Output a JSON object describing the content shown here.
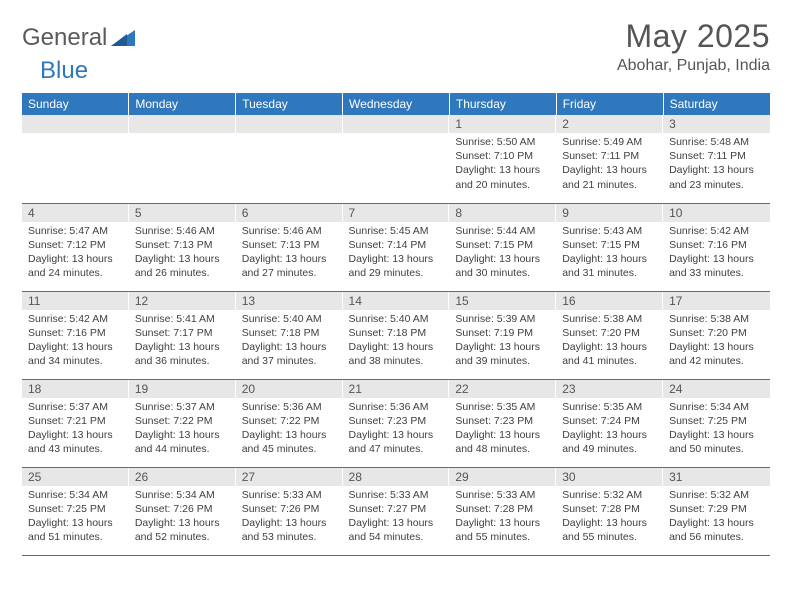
{
  "logo": {
    "text1": "General",
    "text2": "Blue"
  },
  "title": "May 2025",
  "location": "Abohar, Punjab, India",
  "colors": {
    "header_bg": "#2f78bd",
    "header_text": "#ffffff",
    "daynum_bg": "#e7e7e7",
    "daynum_text": "#555555",
    "body_text": "#404040",
    "rule": "#2f78bd",
    "page_bg": "#ffffff"
  },
  "typography": {
    "title_fontsize": 32,
    "location_fontsize": 16,
    "dayheader_fontsize": 12,
    "daynum_fontsize": 12,
    "cell_fontsize": 10.5
  },
  "day_headers": [
    "Sunday",
    "Monday",
    "Tuesday",
    "Wednesday",
    "Thursday",
    "Friday",
    "Saturday"
  ],
  "weeks": [
    [
      null,
      null,
      null,
      null,
      {
        "n": "1",
        "sunrise": "5:50 AM",
        "sunset": "7:10 PM",
        "daylight": "13 hours and 20 minutes."
      },
      {
        "n": "2",
        "sunrise": "5:49 AM",
        "sunset": "7:11 PM",
        "daylight": "13 hours and 21 minutes."
      },
      {
        "n": "3",
        "sunrise": "5:48 AM",
        "sunset": "7:11 PM",
        "daylight": "13 hours and 23 minutes."
      }
    ],
    [
      {
        "n": "4",
        "sunrise": "5:47 AM",
        "sunset": "7:12 PM",
        "daylight": "13 hours and 24 minutes."
      },
      {
        "n": "5",
        "sunrise": "5:46 AM",
        "sunset": "7:13 PM",
        "daylight": "13 hours and 26 minutes."
      },
      {
        "n": "6",
        "sunrise": "5:46 AM",
        "sunset": "7:13 PM",
        "daylight": "13 hours and 27 minutes."
      },
      {
        "n": "7",
        "sunrise": "5:45 AM",
        "sunset": "7:14 PM",
        "daylight": "13 hours and 29 minutes."
      },
      {
        "n": "8",
        "sunrise": "5:44 AM",
        "sunset": "7:15 PM",
        "daylight": "13 hours and 30 minutes."
      },
      {
        "n": "9",
        "sunrise": "5:43 AM",
        "sunset": "7:15 PM",
        "daylight": "13 hours and 31 minutes."
      },
      {
        "n": "10",
        "sunrise": "5:42 AM",
        "sunset": "7:16 PM",
        "daylight": "13 hours and 33 minutes."
      }
    ],
    [
      {
        "n": "11",
        "sunrise": "5:42 AM",
        "sunset": "7:16 PM",
        "daylight": "13 hours and 34 minutes."
      },
      {
        "n": "12",
        "sunrise": "5:41 AM",
        "sunset": "7:17 PM",
        "daylight": "13 hours and 36 minutes."
      },
      {
        "n": "13",
        "sunrise": "5:40 AM",
        "sunset": "7:18 PM",
        "daylight": "13 hours and 37 minutes."
      },
      {
        "n": "14",
        "sunrise": "5:40 AM",
        "sunset": "7:18 PM",
        "daylight": "13 hours and 38 minutes."
      },
      {
        "n": "15",
        "sunrise": "5:39 AM",
        "sunset": "7:19 PM",
        "daylight": "13 hours and 39 minutes."
      },
      {
        "n": "16",
        "sunrise": "5:38 AM",
        "sunset": "7:20 PM",
        "daylight": "13 hours and 41 minutes."
      },
      {
        "n": "17",
        "sunrise": "5:38 AM",
        "sunset": "7:20 PM",
        "daylight": "13 hours and 42 minutes."
      }
    ],
    [
      {
        "n": "18",
        "sunrise": "5:37 AM",
        "sunset": "7:21 PM",
        "daylight": "13 hours and 43 minutes."
      },
      {
        "n": "19",
        "sunrise": "5:37 AM",
        "sunset": "7:22 PM",
        "daylight": "13 hours and 44 minutes."
      },
      {
        "n": "20",
        "sunrise": "5:36 AM",
        "sunset": "7:22 PM",
        "daylight": "13 hours and 45 minutes."
      },
      {
        "n": "21",
        "sunrise": "5:36 AM",
        "sunset": "7:23 PM",
        "daylight": "13 hours and 47 minutes."
      },
      {
        "n": "22",
        "sunrise": "5:35 AM",
        "sunset": "7:23 PM",
        "daylight": "13 hours and 48 minutes."
      },
      {
        "n": "23",
        "sunrise": "5:35 AM",
        "sunset": "7:24 PM",
        "daylight": "13 hours and 49 minutes."
      },
      {
        "n": "24",
        "sunrise": "5:34 AM",
        "sunset": "7:25 PM",
        "daylight": "13 hours and 50 minutes."
      }
    ],
    [
      {
        "n": "25",
        "sunrise": "5:34 AM",
        "sunset": "7:25 PM",
        "daylight": "13 hours and 51 minutes."
      },
      {
        "n": "26",
        "sunrise": "5:34 AM",
        "sunset": "7:26 PM",
        "daylight": "13 hours and 52 minutes."
      },
      {
        "n": "27",
        "sunrise": "5:33 AM",
        "sunset": "7:26 PM",
        "daylight": "13 hours and 53 minutes."
      },
      {
        "n": "28",
        "sunrise": "5:33 AM",
        "sunset": "7:27 PM",
        "daylight": "13 hours and 54 minutes."
      },
      {
        "n": "29",
        "sunrise": "5:33 AM",
        "sunset": "7:28 PM",
        "daylight": "13 hours and 55 minutes."
      },
      {
        "n": "30",
        "sunrise": "5:32 AM",
        "sunset": "7:28 PM",
        "daylight": "13 hours and 55 minutes."
      },
      {
        "n": "31",
        "sunrise": "5:32 AM",
        "sunset": "7:29 PM",
        "daylight": "13 hours and 56 minutes."
      }
    ]
  ],
  "labels": {
    "sunrise": "Sunrise:",
    "sunset": "Sunset:",
    "daylight": "Daylight:"
  }
}
